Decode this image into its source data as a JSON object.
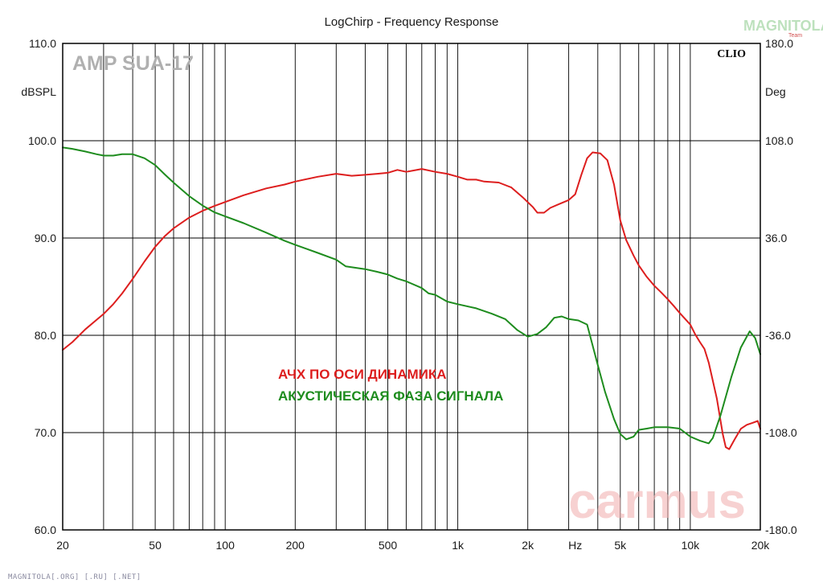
{
  "chart_data": {
    "type": "line",
    "title": "LogChirp - Frequency Response",
    "xscale": "log",
    "xlim": [
      20,
      20000
    ],
    "x_tick_labels": [
      {
        "value": 20,
        "label": "20"
      },
      {
        "value": 50,
        "label": "50"
      },
      {
        "value": 100,
        "label": "100"
      },
      {
        "value": 200,
        "label": "200"
      },
      {
        "value": 500,
        "label": "500"
      },
      {
        "value": 1000,
        "label": "1k"
      },
      {
        "value": 2000,
        "label": "2k"
      },
      {
        "value": 3200,
        "label": "Hz"
      },
      {
        "value": 5000,
        "label": "5k"
      },
      {
        "value": 10000,
        "label": "10k"
      },
      {
        "value": 20000,
        "label": "20k"
      }
    ],
    "y_left": {
      "unit": "dBSPL",
      "lim": [
        60,
        110
      ],
      "ticks": [
        {
          "value": 110,
          "label": "110.0"
        },
        {
          "value": 100,
          "label": "100.0"
        },
        {
          "value": 90,
          "label": "90.0"
        },
        {
          "value": 80,
          "label": "80.0"
        },
        {
          "value": 70,
          "label": "70.0"
        },
        {
          "value": 60,
          "label": "60.0"
        }
      ]
    },
    "y_right": {
      "unit": "Deg",
      "lim": [
        -180,
        180
      ],
      "ticks": [
        {
          "value": 180,
          "label": "180.0"
        },
        {
          "value": 108,
          "label": "108.0"
        },
        {
          "value": 36,
          "label": "36.0"
        },
        {
          "value": -36,
          "label": "-36.0"
        },
        {
          "value": -108,
          "label": "-108.0"
        },
        {
          "value": -180,
          "label": "-180.0"
        }
      ]
    },
    "grid": true,
    "legend_position": "center",
    "series": [
      {
        "name": "АЧХ ПО ОСИ ДИНАМИКА",
        "axis": "left",
        "color": "#dd1e1e",
        "points": [
          [
            20,
            78.5
          ],
          [
            22,
            79.3
          ],
          [
            25,
            80.6
          ],
          [
            28,
            81.6
          ],
          [
            30,
            82.2
          ],
          [
            33,
            83.2
          ],
          [
            36,
            84.3
          ],
          [
            40,
            85.8
          ],
          [
            45,
            87.6
          ],
          [
            50,
            89.1
          ],
          [
            55,
            90.2
          ],
          [
            60,
            91.0
          ],
          [
            70,
            92.1
          ],
          [
            80,
            92.8
          ],
          [
            90,
            93.3
          ],
          [
            100,
            93.7
          ],
          [
            120,
            94.4
          ],
          [
            150,
            95.1
          ],
          [
            180,
            95.5
          ],
          [
            200,
            95.8
          ],
          [
            250,
            96.3
          ],
          [
            300,
            96.6
          ],
          [
            350,
            96.4
          ],
          [
            400,
            96.5
          ],
          [
            450,
            96.6
          ],
          [
            500,
            96.7
          ],
          [
            550,
            97.0
          ],
          [
            600,
            96.8
          ],
          [
            700,
            97.1
          ],
          [
            800,
            96.8
          ],
          [
            900,
            96.6
          ],
          [
            1000,
            96.3
          ],
          [
            1100,
            96.0
          ],
          [
            1200,
            96.0
          ],
          [
            1300,
            95.8
          ],
          [
            1500,
            95.7
          ],
          [
            1700,
            95.2
          ],
          [
            1900,
            94.2
          ],
          [
            2100,
            93.2
          ],
          [
            2200,
            92.6
          ],
          [
            2350,
            92.6
          ],
          [
            2500,
            93.1
          ],
          [
            2800,
            93.6
          ],
          [
            3000,
            93.9
          ],
          [
            3200,
            94.5
          ],
          [
            3400,
            96.5
          ],
          [
            3600,
            98.2
          ],
          [
            3800,
            98.8
          ],
          [
            4100,
            98.7
          ],
          [
            4400,
            98.0
          ],
          [
            4700,
            95.5
          ],
          [
            5000,
            91.8
          ],
          [
            5300,
            89.8
          ],
          [
            5700,
            88.2
          ],
          [
            6000,
            87.2
          ],
          [
            6500,
            86.0
          ],
          [
            7000,
            85.1
          ],
          [
            7500,
            84.4
          ],
          [
            8000,
            83.7
          ],
          [
            8500,
            83.0
          ],
          [
            9000,
            82.3
          ],
          [
            10000,
            81.1
          ],
          [
            10500,
            80.1
          ],
          [
            11000,
            79.3
          ],
          [
            11500,
            78.6
          ],
          [
            12000,
            77.2
          ],
          [
            13000,
            73.5
          ],
          [
            13800,
            69.8
          ],
          [
            14200,
            68.5
          ],
          [
            14700,
            68.3
          ],
          [
            15500,
            69.3
          ],
          [
            16500,
            70.4
          ],
          [
            17500,
            70.8
          ],
          [
            18500,
            71.0
          ],
          [
            19500,
            71.2
          ],
          [
            20000,
            70.4
          ]
        ]
      },
      {
        "name": "АКУСТИЧЕСКАЯ ФАЗА СИГНАЛА",
        "axis": "right",
        "color": "#1e8c1e",
        "points": [
          [
            20,
            103
          ],
          [
            22,
            102
          ],
          [
            25,
            100
          ],
          [
            28,
            98
          ],
          [
            30,
            97
          ],
          [
            33,
            97
          ],
          [
            36,
            98
          ],
          [
            40,
            98
          ],
          [
            45,
            95
          ],
          [
            50,
            90
          ],
          [
            55,
            83
          ],
          [
            60,
            77
          ],
          [
            70,
            67
          ],
          [
            80,
            60
          ],
          [
            90,
            55
          ],
          [
            100,
            52
          ],
          [
            120,
            47
          ],
          [
            150,
            40
          ],
          [
            180,
            34
          ],
          [
            200,
            31
          ],
          [
            250,
            25
          ],
          [
            300,
            20
          ],
          [
            330,
            15
          ],
          [
            400,
            13
          ],
          [
            450,
            11
          ],
          [
            500,
            9
          ],
          [
            550,
            6
          ],
          [
            600,
            4
          ],
          [
            700,
            -1
          ],
          [
            750,
            -5
          ],
          [
            800,
            -6
          ],
          [
            900,
            -11
          ],
          [
            1000,
            -13
          ],
          [
            1200,
            -16
          ],
          [
            1400,
            -20
          ],
          [
            1600,
            -24
          ],
          [
            1800,
            -32
          ],
          [
            2000,
            -37
          ],
          [
            2200,
            -35
          ],
          [
            2400,
            -30
          ],
          [
            2600,
            -23
          ],
          [
            2800,
            -22
          ],
          [
            3000,
            -24
          ],
          [
            3300,
            -25
          ],
          [
            3600,
            -28
          ],
          [
            4000,
            -58
          ],
          [
            4300,
            -78
          ],
          [
            4700,
            -98
          ],
          [
            5000,
            -109
          ],
          [
            5300,
            -113
          ],
          [
            5700,
            -111
          ],
          [
            6000,
            -106
          ],
          [
            6500,
            -105
          ],
          [
            7000,
            -104
          ],
          [
            8000,
            -104
          ],
          [
            9000,
            -105
          ],
          [
            10000,
            -111
          ],
          [
            11000,
            -114
          ],
          [
            12000,
            -116
          ],
          [
            12500,
            -112
          ],
          [
            13500,
            -95
          ],
          [
            15000,
            -67
          ],
          [
            16500,
            -45
          ],
          [
            18000,
            -33
          ],
          [
            19000,
            -38
          ],
          [
            20000,
            -50
          ]
        ]
      }
    ],
    "annotations": [
      {
        "text": "AMP SUA-17",
        "color": "#b0b0b0"
      },
      {
        "text": "CLIO",
        "color": "#000000"
      },
      {
        "text": "carmus",
        "color": "#f2b4b4"
      }
    ]
  },
  "ui": {
    "title": "LogChirp - Frequency Response",
    "y_left_unit": "dBSPL",
    "y_right_unit": "Deg",
    "watermark_left": "AMP SUA-17",
    "clio_label": "CLIO",
    "legend_red": "АЧХ ПО ОСИ ДИНАМИКА",
    "legend_green": "АКУСТИЧЕСКАЯ ФАЗА СИГНАЛА",
    "carmus_watermark": "carmus",
    "logo_text": "MAGNITOLA",
    "logo_subtext": "Team",
    "footer": "MAGNITOLA[.ORG] [.RU] [.NET]"
  }
}
